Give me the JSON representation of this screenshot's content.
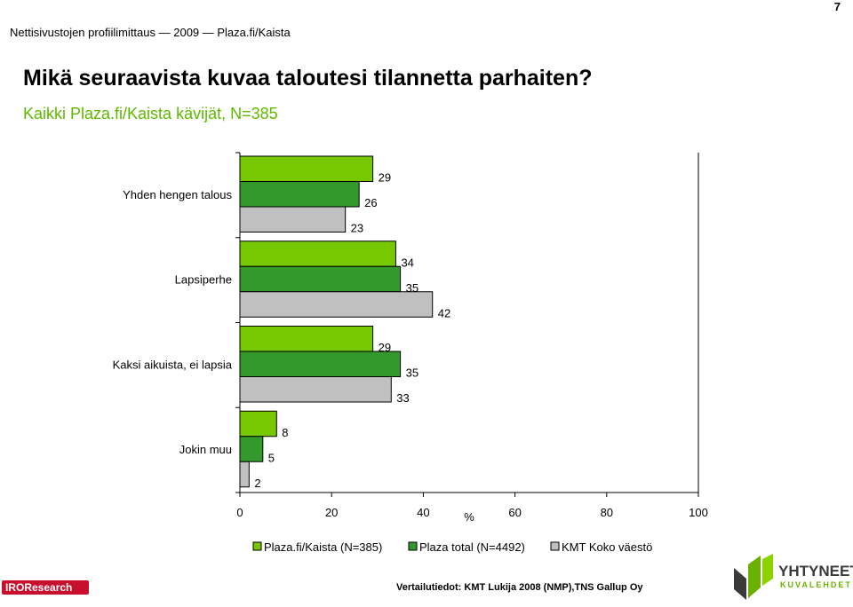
{
  "page_number": "7",
  "header": {
    "text": "Nettisivustojen profiilimittaus — 2009 — Plaza.fi/Kaista"
  },
  "title": "Mikä seuraavista kuvaa taloutesi tilannetta parhaiten?",
  "subtitle": "Kaikki Plaza.fi/Kaista kävijät, N=385",
  "chart_data": {
    "type": "bar",
    "orientation": "horizontal",
    "categories": [
      "Yhden hengen talous",
      "Lapsiperhe",
      "Kaksi aikuista, ei lapsia",
      "Jokin muu"
    ],
    "series": [
      {
        "name": "Plaza.fi/Kaista (N=385)",
        "values": [
          29,
          34,
          29,
          8
        ],
        "color": "#76c800"
      },
      {
        "name": "Plaza total (N=4492)",
        "values": [
          26,
          35,
          35,
          5
        ],
        "color": "#33992b"
      },
      {
        "name": "KMT Koko väestö",
        "values": [
          23,
          42,
          33,
          2
        ],
        "color": "#c0c0c0"
      }
    ],
    "xlabel": "%",
    "xlim": [
      0,
      100
    ],
    "xticks": [
      0,
      20,
      40,
      60,
      80,
      100
    ],
    "grid": false,
    "legend_position": "bottom"
  },
  "footer": {
    "source": "Vertailutiedot: KMT Lukija 2008 (NMP),TNS Gallup Oy",
    "left_logo": "IROResearch",
    "right_logo_name": "YHTYNEET",
    "right_logo_sub": "KUVALEHDET"
  }
}
